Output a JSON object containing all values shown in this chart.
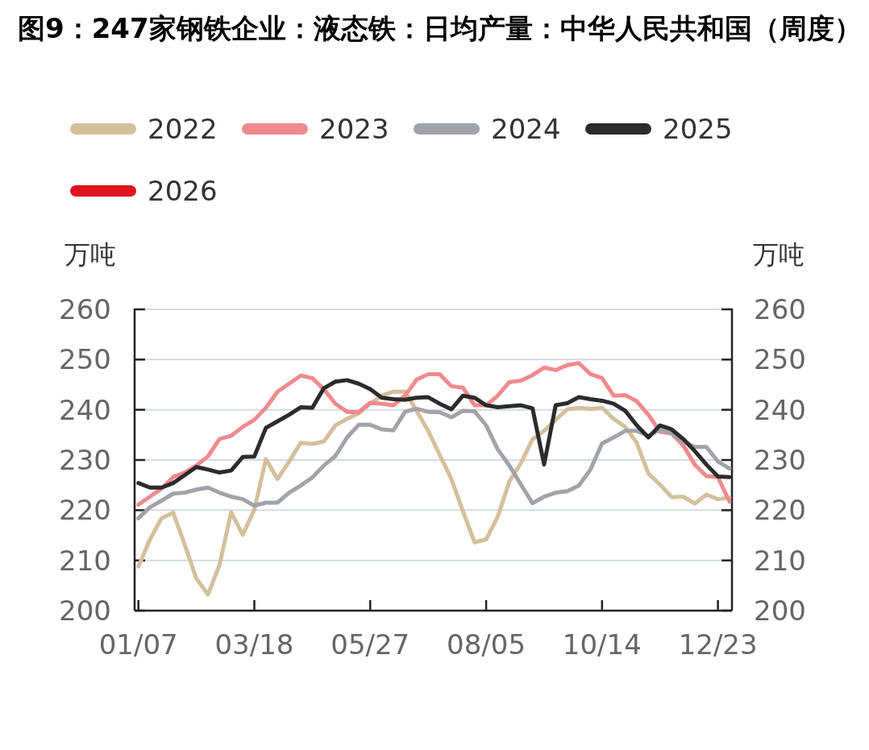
{
  "chart_data": {
    "type": "line",
    "title": "图9：247家钢铁企业：液态铁：日均产量：中华人民共和国（周度）",
    "ylabel": "万吨",
    "y2label": "万吨",
    "categories": [
      "01/07",
      null,
      null,
      null,
      null,
      null,
      null,
      null,
      null,
      null,
      "03/18",
      null,
      null,
      null,
      null,
      null,
      null,
      null,
      null,
      null,
      "05/27",
      null,
      null,
      null,
      null,
      null,
      null,
      null,
      null,
      null,
      "08/05",
      null,
      null,
      null,
      null,
      null,
      null,
      null,
      null,
      null,
      "10/14",
      null,
      null,
      null,
      null,
      null,
      null,
      null,
      null,
      null,
      "12/23",
      null
    ],
    "series": [
      {
        "name": "2022",
        "color": "#d3c09b",
        "values": [
          208.8,
          214.2,
          218.4,
          219.5,
          213.1,
          206.4,
          203.2,
          209.1,
          219.6,
          215.1,
          220.1,
          230.2,
          226.2,
          229.7,
          233.4,
          233.2,
          233.7,
          236.9,
          238.2,
          239.3,
          241.2,
          242.8,
          243.6,
          243.6,
          239.8,
          235.8,
          231.0,
          226.2,
          219.8,
          213.6,
          214.2,
          218.7,
          225.7,
          229.4,
          234.1,
          235.8,
          238.0,
          240.1,
          240.4,
          240.2,
          240.4,
          238.2,
          236.6,
          233.4,
          227.3,
          225.1,
          222.6,
          222.7,
          221.3,
          223.1,
          222.2,
          222.5
        ]
      },
      {
        "name": "2023",
        "color": "#f08a8e",
        "values": [
          221.1,
          222.7,
          224.3,
          226.6,
          227.5,
          228.9,
          230.7,
          234.2,
          234.8,
          236.6,
          238.0,
          240.4,
          243.6,
          245.2,
          246.8,
          246.3,
          244.1,
          241.2,
          239.6,
          239.5,
          241.4,
          241.2,
          240.9,
          242.8,
          246.0,
          247.1,
          247.1,
          244.7,
          244.4,
          240.9,
          240.9,
          242.8,
          245.5,
          245.8,
          246.9,
          248.4,
          247.9,
          248.9,
          249.3,
          247.1,
          246.3,
          242.8,
          242.9,
          241.7,
          239.0,
          235.6,
          235.3,
          232.9,
          229.1,
          226.8,
          226.6,
          221.7
        ]
      },
      {
        "name": "2024",
        "color": "#a0a3a7",
        "values": [
          218.4,
          220.6,
          221.9,
          223.3,
          223.5,
          224.1,
          224.5,
          223.5,
          222.7,
          222.2,
          220.9,
          221.5,
          221.5,
          223.5,
          224.9,
          226.5,
          228.9,
          230.8,
          234.5,
          237.0,
          237.0,
          236.1,
          235.9,
          239.6,
          240.2,
          239.6,
          239.5,
          238.5,
          239.8,
          239.7,
          236.9,
          232.1,
          228.9,
          225.1,
          221.4,
          222.7,
          223.5,
          223.8,
          224.9,
          228.1,
          233.3,
          234.5,
          235.8,
          235.8,
          234.8,
          236.1,
          235.3,
          233.7,
          232.6,
          232.6,
          229.7,
          228.3
        ]
      },
      {
        "name": "2025",
        "color": "#2b2b2b",
        "values": [
          225.4,
          224.5,
          224.5,
          225.4,
          227.0,
          228.6,
          228.1,
          227.5,
          227.9,
          230.6,
          230.7,
          236.4,
          237.7,
          239.0,
          240.5,
          240.4,
          244.3,
          245.6,
          245.9,
          245.2,
          244.1,
          242.4,
          242.1,
          242.0,
          242.4,
          242.5,
          241.2,
          240.1,
          242.8,
          242.4,
          240.9,
          240.5,
          240.7,
          240.9,
          240.3,
          229.1,
          240.9,
          241.3,
          242.5,
          242.1,
          241.8,
          241.2,
          239.8,
          236.9,
          234.5,
          236.9,
          236.1,
          234.2,
          231.8,
          229.1,
          226.7,
          226.6
        ]
      },
      {
        "name": "2026",
        "color": "#e0141e",
        "values": [
          null,
          null,
          null,
          null,
          null,
          null,
          null,
          null,
          null,
          null,
          null,
          null,
          null,
          null,
          null,
          null,
          null,
          null,
          null,
          null,
          null,
          null,
          null,
          null,
          null,
          null,
          null,
          null,
          null,
          null,
          null,
          null,
          null,
          null,
          null,
          null,
          null,
          null,
          null,
          null,
          null,
          null,
          null,
          null,
          null,
          null,
          null,
          null,
          null,
          null,
          null,
          null
        ]
      }
    ],
    "ylim": [
      200,
      260
    ],
    "yticks": [
      200,
      210,
      220,
      230,
      240,
      250,
      260
    ],
    "y2lim": [
      200,
      260
    ],
    "y2ticks": [
      200,
      210,
      220,
      230,
      240,
      250,
      260
    ],
    "grid": "y",
    "legend": "top",
    "line_style": "solid",
    "marker": "none"
  }
}
